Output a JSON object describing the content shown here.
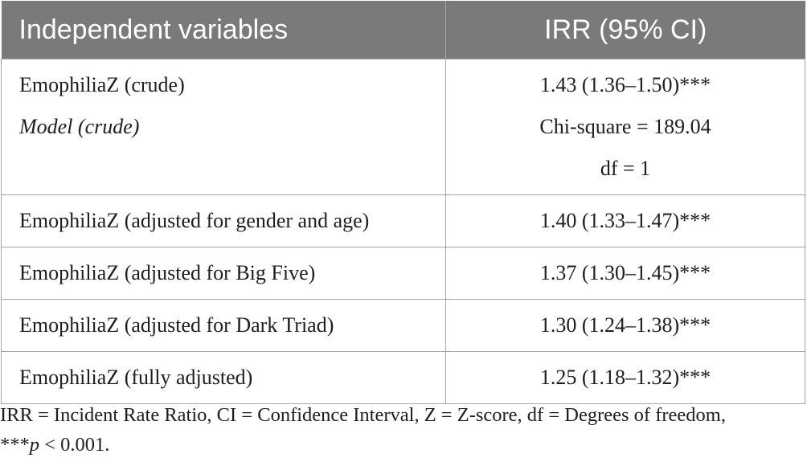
{
  "table": {
    "headers": [
      "Independent variables",
      "IRR (95% CI)"
    ],
    "first_row": {
      "labels": [
        "EmophiliaZ (crude)",
        "Model (crude)"
      ],
      "values": [
        "1.43 (1.36–1.50)***",
        "Chi-square = 189.04",
        "df = 1"
      ]
    },
    "rows": [
      {
        "label": "EmophiliaZ (adjusted for gender and age)",
        "value": "1.40 (1.33–1.47)***"
      },
      {
        "label": "EmophiliaZ (adjusted for Big Five)",
        "value": "1.37 (1.30–1.45)***"
      },
      {
        "label": "EmophiliaZ (adjusted for Dark Triad)",
        "value": "1.30 (1.24–1.38)***"
      },
      {
        "label": "EmophiliaZ (fully adjusted)",
        "value": "1.25 (1.18–1.32)***"
      }
    ]
  },
  "footnote": {
    "line1": "IRR = Incident Rate Ratio, CI = Confidence Interval, Z = Z-score, df = Degrees of freedom,",
    "line2_prefix": "***",
    "line2_p": "p",
    "line2_suffix": " < 0.001."
  }
}
